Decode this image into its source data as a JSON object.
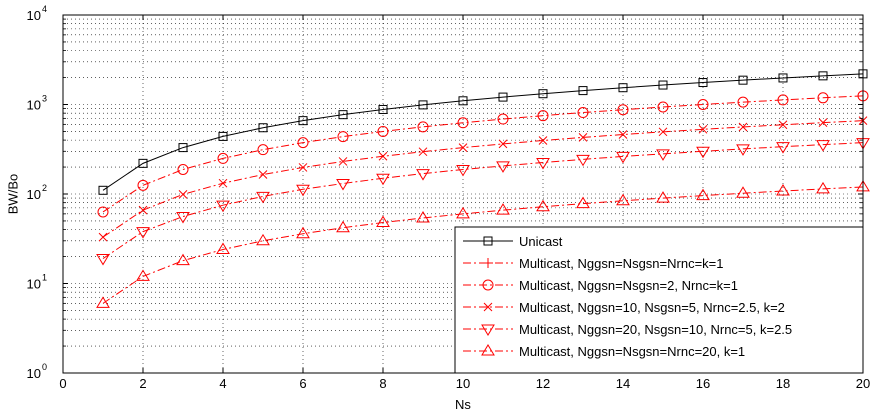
{
  "chart_data": {
    "type": "line",
    "title": "",
    "xlabel": "Ns",
    "ylabel": "BW/Bo",
    "xlim": [
      0,
      20
    ],
    "ylim": [
      1,
      10000
    ],
    "yscale": "log",
    "grid": true,
    "legend_position": "bottom-right",
    "x_ticks": [
      "0",
      "2",
      "4",
      "6",
      "8",
      "10",
      "12",
      "14",
      "16",
      "18",
      "20"
    ],
    "y_ticks": [
      {
        "base": "10",
        "exp": "0"
      },
      {
        "base": "10",
        "exp": "1"
      },
      {
        "base": "10",
        "exp": "2"
      },
      {
        "base": "10",
        "exp": "3"
      },
      {
        "base": "10",
        "exp": "4"
      }
    ],
    "x": [
      1,
      2,
      3,
      4,
      5,
      6,
      7,
      8,
      9,
      10,
      11,
      12,
      13,
      14,
      15,
      16,
      17,
      18,
      19,
      20
    ],
    "series": [
      {
        "name": "Unicast",
        "color": "#000000",
        "marker": "square",
        "dash": "solid",
        "values": [
          110,
          220,
          330,
          440,
          550,
          660,
          770,
          880,
          990,
          1100,
          1210,
          1320,
          1430,
          1540,
          1650,
          1760,
          1870,
          1980,
          2090,
          2200
        ]
      },
      {
        "name": "Multicast, Nggsn=Nsgsn=Nrnc=k=1",
        "color": "#ff0000",
        "marker": "plus",
        "dash": "dashdot",
        "values": [
          null,
          null,
          null,
          null,
          null,
          null,
          null,
          null,
          null,
          null,
          null,
          null,
          null,
          null,
          null,
          null,
          null,
          null,
          null,
          null
        ]
      },
      {
        "name": "Multicast, Nggsn=Nsgsn=2, Nrnc=k=1",
        "color": "#ff0000",
        "marker": "circle",
        "dash": "dashdot",
        "values": [
          63,
          125,
          188,
          250,
          313,
          375,
          438,
          500,
          563,
          625,
          688,
          750,
          813,
          875,
          938,
          1000,
          1063,
          1125,
          1188,
          1250
        ]
      },
      {
        "name": "Multicast, Nggsn=10, Nsgsn=5, Nrnc=2.5, k=2",
        "color": "#ff0000",
        "marker": "x",
        "dash": "dashdot",
        "values": [
          33,
          66,
          99,
          132,
          165,
          198,
          231,
          264,
          297,
          330,
          363,
          396,
          429,
          462,
          495,
          528,
          561,
          594,
          627,
          660
        ]
      },
      {
        "name": "Multicast, Nggsn=20, Nsgsn=10, Nrnc=5, k=2.5",
        "color": "#ff0000",
        "marker": "triangle-down",
        "dash": "dashdot",
        "values": [
          19,
          38,
          56,
          75,
          94,
          113,
          131,
          150,
          169,
          188,
          206,
          225,
          244,
          263,
          281,
          300,
          319,
          338,
          356,
          375
        ]
      },
      {
        "name": "Multicast, Nggsn=Nsgsn=Nrnc=20, k=1",
        "color": "#ff0000",
        "marker": "triangle-up",
        "dash": "dashdot",
        "values": [
          6,
          12,
          18,
          24,
          30,
          36,
          42,
          48,
          54,
          60,
          66,
          72,
          78,
          84,
          90,
          96,
          102,
          108,
          114,
          120
        ]
      }
    ]
  }
}
